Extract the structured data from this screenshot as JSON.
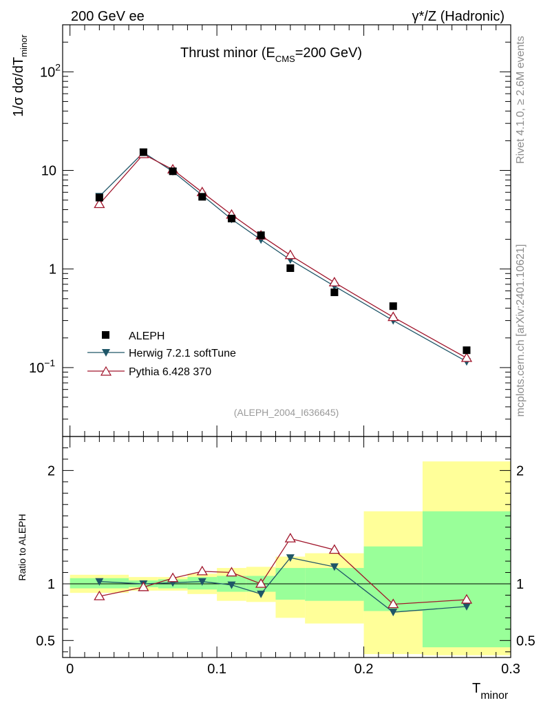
{
  "header": {
    "left": "200 GeV ee",
    "right": "γ*/Z (Hadronic)"
  },
  "side": {
    "rivet": "Rivet 4.1.0, ≥ 2.6M events",
    "mcplots": "mcplots.cern.ch [arXiv:2401.10621]"
  },
  "colors": {
    "data": "#000000",
    "herwig": "#1f5668",
    "pythia": "#a0152b",
    "band_inner": "#99ff99",
    "band_outer": "#ffff99"
  },
  "chart_data": [
    {
      "type": "line",
      "title": "Thrust minor (E",
      "title_sub": "CMS",
      "title_tail": "=200 GeV)",
      "analysis": "(ALEPH_2004_I636645)",
      "ylabel_pre": "1/σ  dσ/dT",
      "ylabel_sub": "minor",
      "yscale": "log",
      "ylim": [
        0.02,
        300
      ],
      "xlim": [
        -0.005,
        0.3
      ],
      "ytick_labels": [
        {
          "base": "10",
          "exp": "2",
          "value": 100
        },
        {
          "base": "10",
          "exp": "",
          "value": 10
        },
        {
          "base": "1",
          "exp": "",
          "value": 1
        },
        {
          "base": "10",
          "exp": "−1",
          "value": 0.1
        }
      ],
      "legend": [
        "ALEPH",
        "Herwig 7.2.1 softTune",
        "Pythia 6.428 370"
      ],
      "x": [
        0.02,
        0.05,
        0.07,
        0.09,
        0.11,
        0.13,
        0.15,
        0.18,
        0.22,
        0.27
      ],
      "series": [
        {
          "name": "ALEPH",
          "marker": "square",
          "values": [
            5.3,
            15.3,
            9.8,
            5.4,
            3.25,
            2.2,
            1.02,
            0.58,
            0.42,
            0.15
          ]
        },
        {
          "name": "Herwig 7.2.1 softTune",
          "marker": "triangle-down",
          "values": [
            5.45,
            15.2,
            9.75,
            5.6,
            3.2,
            1.98,
            1.24,
            0.67,
            0.3,
            0.115
          ]
        },
        {
          "name": "Pythia 6.428 370",
          "marker": "triangle-up-open",
          "values": [
            4.55,
            14.6,
            10.2,
            6.0,
            3.55,
            2.18,
            1.38,
            0.73,
            0.325,
            0.125
          ]
        }
      ]
    },
    {
      "type": "line",
      "ylabel": "Ratio to ALEPH",
      "xlabel": "T",
      "xlabel_sub": "minor",
      "ylim": [
        0.35,
        2.3
      ],
      "xlim": [
        -0.005,
        0.3
      ],
      "xticks": [
        0,
        0.1,
        0.2,
        0.3
      ],
      "xtick_labels": [
        "0",
        "0.1",
        "0.2",
        "0.3"
      ],
      "yticks": [
        0.5,
        1,
        2
      ],
      "ytick_labels": [
        "0.5",
        "1",
        "2"
      ],
      "bins": [
        {
          "lo": 0.0,
          "hi": 0.04,
          "inner": [
            0.96,
            1.05
          ],
          "outer": [
            0.92,
            1.08
          ]
        },
        {
          "lo": 0.04,
          "hi": 0.06,
          "inner": [
            0.97,
            1.03
          ],
          "outer": [
            0.94,
            1.06
          ]
        },
        {
          "lo": 0.06,
          "hi": 0.08,
          "inner": [
            0.96,
            1.04
          ],
          "outer": [
            0.94,
            1.06
          ]
        },
        {
          "lo": 0.08,
          "hi": 0.1,
          "inner": [
            0.95,
            1.06
          ],
          "outer": [
            0.91,
            1.09
          ]
        },
        {
          "lo": 0.1,
          "hi": 0.12,
          "inner": [
            0.93,
            1.07
          ],
          "outer": [
            0.85,
            1.14
          ]
        },
        {
          "lo": 0.12,
          "hi": 0.14,
          "inner": [
            0.93,
            1.07
          ],
          "outer": [
            0.84,
            1.15
          ]
        },
        {
          "lo": 0.14,
          "hi": 0.16,
          "inner": [
            0.86,
            1.14
          ],
          "outer": [
            0.7,
            1.24
          ]
        },
        {
          "lo": 0.16,
          "hi": 0.2,
          "inner": [
            0.85,
            1.14
          ],
          "outer": [
            0.65,
            1.27
          ]
        },
        {
          "lo": 0.2,
          "hi": 0.24,
          "inner": [
            0.76,
            1.33
          ],
          "outer": [
            0.38,
            1.64
          ]
        },
        {
          "lo": 0.24,
          "hi": 0.3,
          "inner": [
            0.44,
            1.64
          ],
          "outer": [
            0.37,
            2.08
          ]
        }
      ],
      "series": [
        {
          "name": "Herwig 7.2.1 softTune",
          "values": [
            1.02,
            1.0,
            1.01,
            1.02,
            0.99,
            0.91,
            1.23,
            1.15,
            0.75,
            0.8
          ]
        },
        {
          "name": "Pythia 6.428 370",
          "values": [
            0.89,
            0.97,
            1.05,
            1.11,
            1.1,
            1.0,
            1.4,
            1.3,
            0.82,
            0.86
          ]
        }
      ]
    }
  ]
}
